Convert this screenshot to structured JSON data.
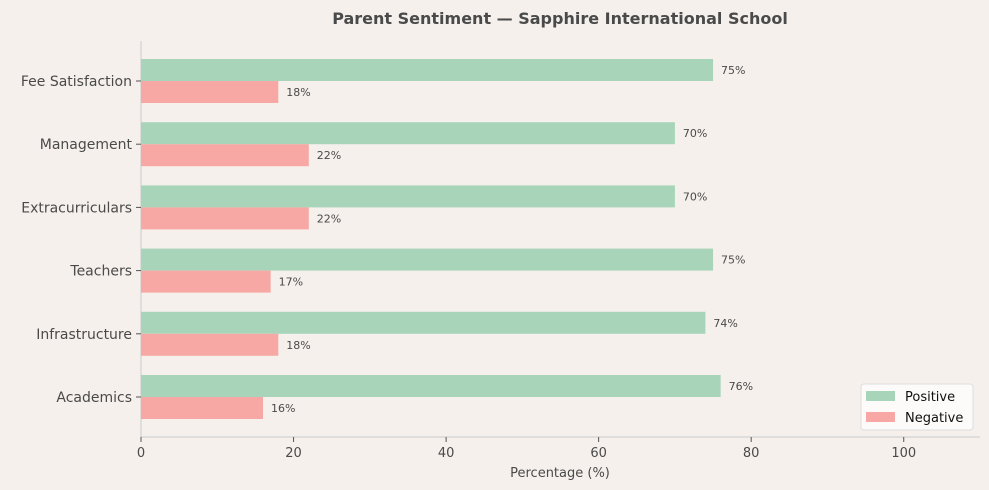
{
  "chart_data": {
    "type": "bar",
    "orientation": "horizontal",
    "title": "Parent Sentiment — Sapphire International School",
    "xlabel": "Percentage (%)",
    "ylabel": "",
    "xlim": [
      0,
      110
    ],
    "xticks": [
      0,
      20,
      40,
      60,
      80,
      100
    ],
    "categories": [
      "Fee Satisfaction",
      "Management",
      "Extracurriculars",
      "Teachers",
      "Infrastructure",
      "Academics"
    ],
    "series": [
      {
        "name": "Positive",
        "color": "#a8d5b9",
        "values": [
          75,
          70,
          70,
          75,
          74,
          76
        ]
      },
      {
        "name": "Negative",
        "color": "#f7a8a4",
        "values": [
          18,
          22,
          22,
          17,
          18,
          16
        ]
      }
    ],
    "value_label_suffix": "%",
    "grid": false,
    "legend_position": "lower-right"
  }
}
